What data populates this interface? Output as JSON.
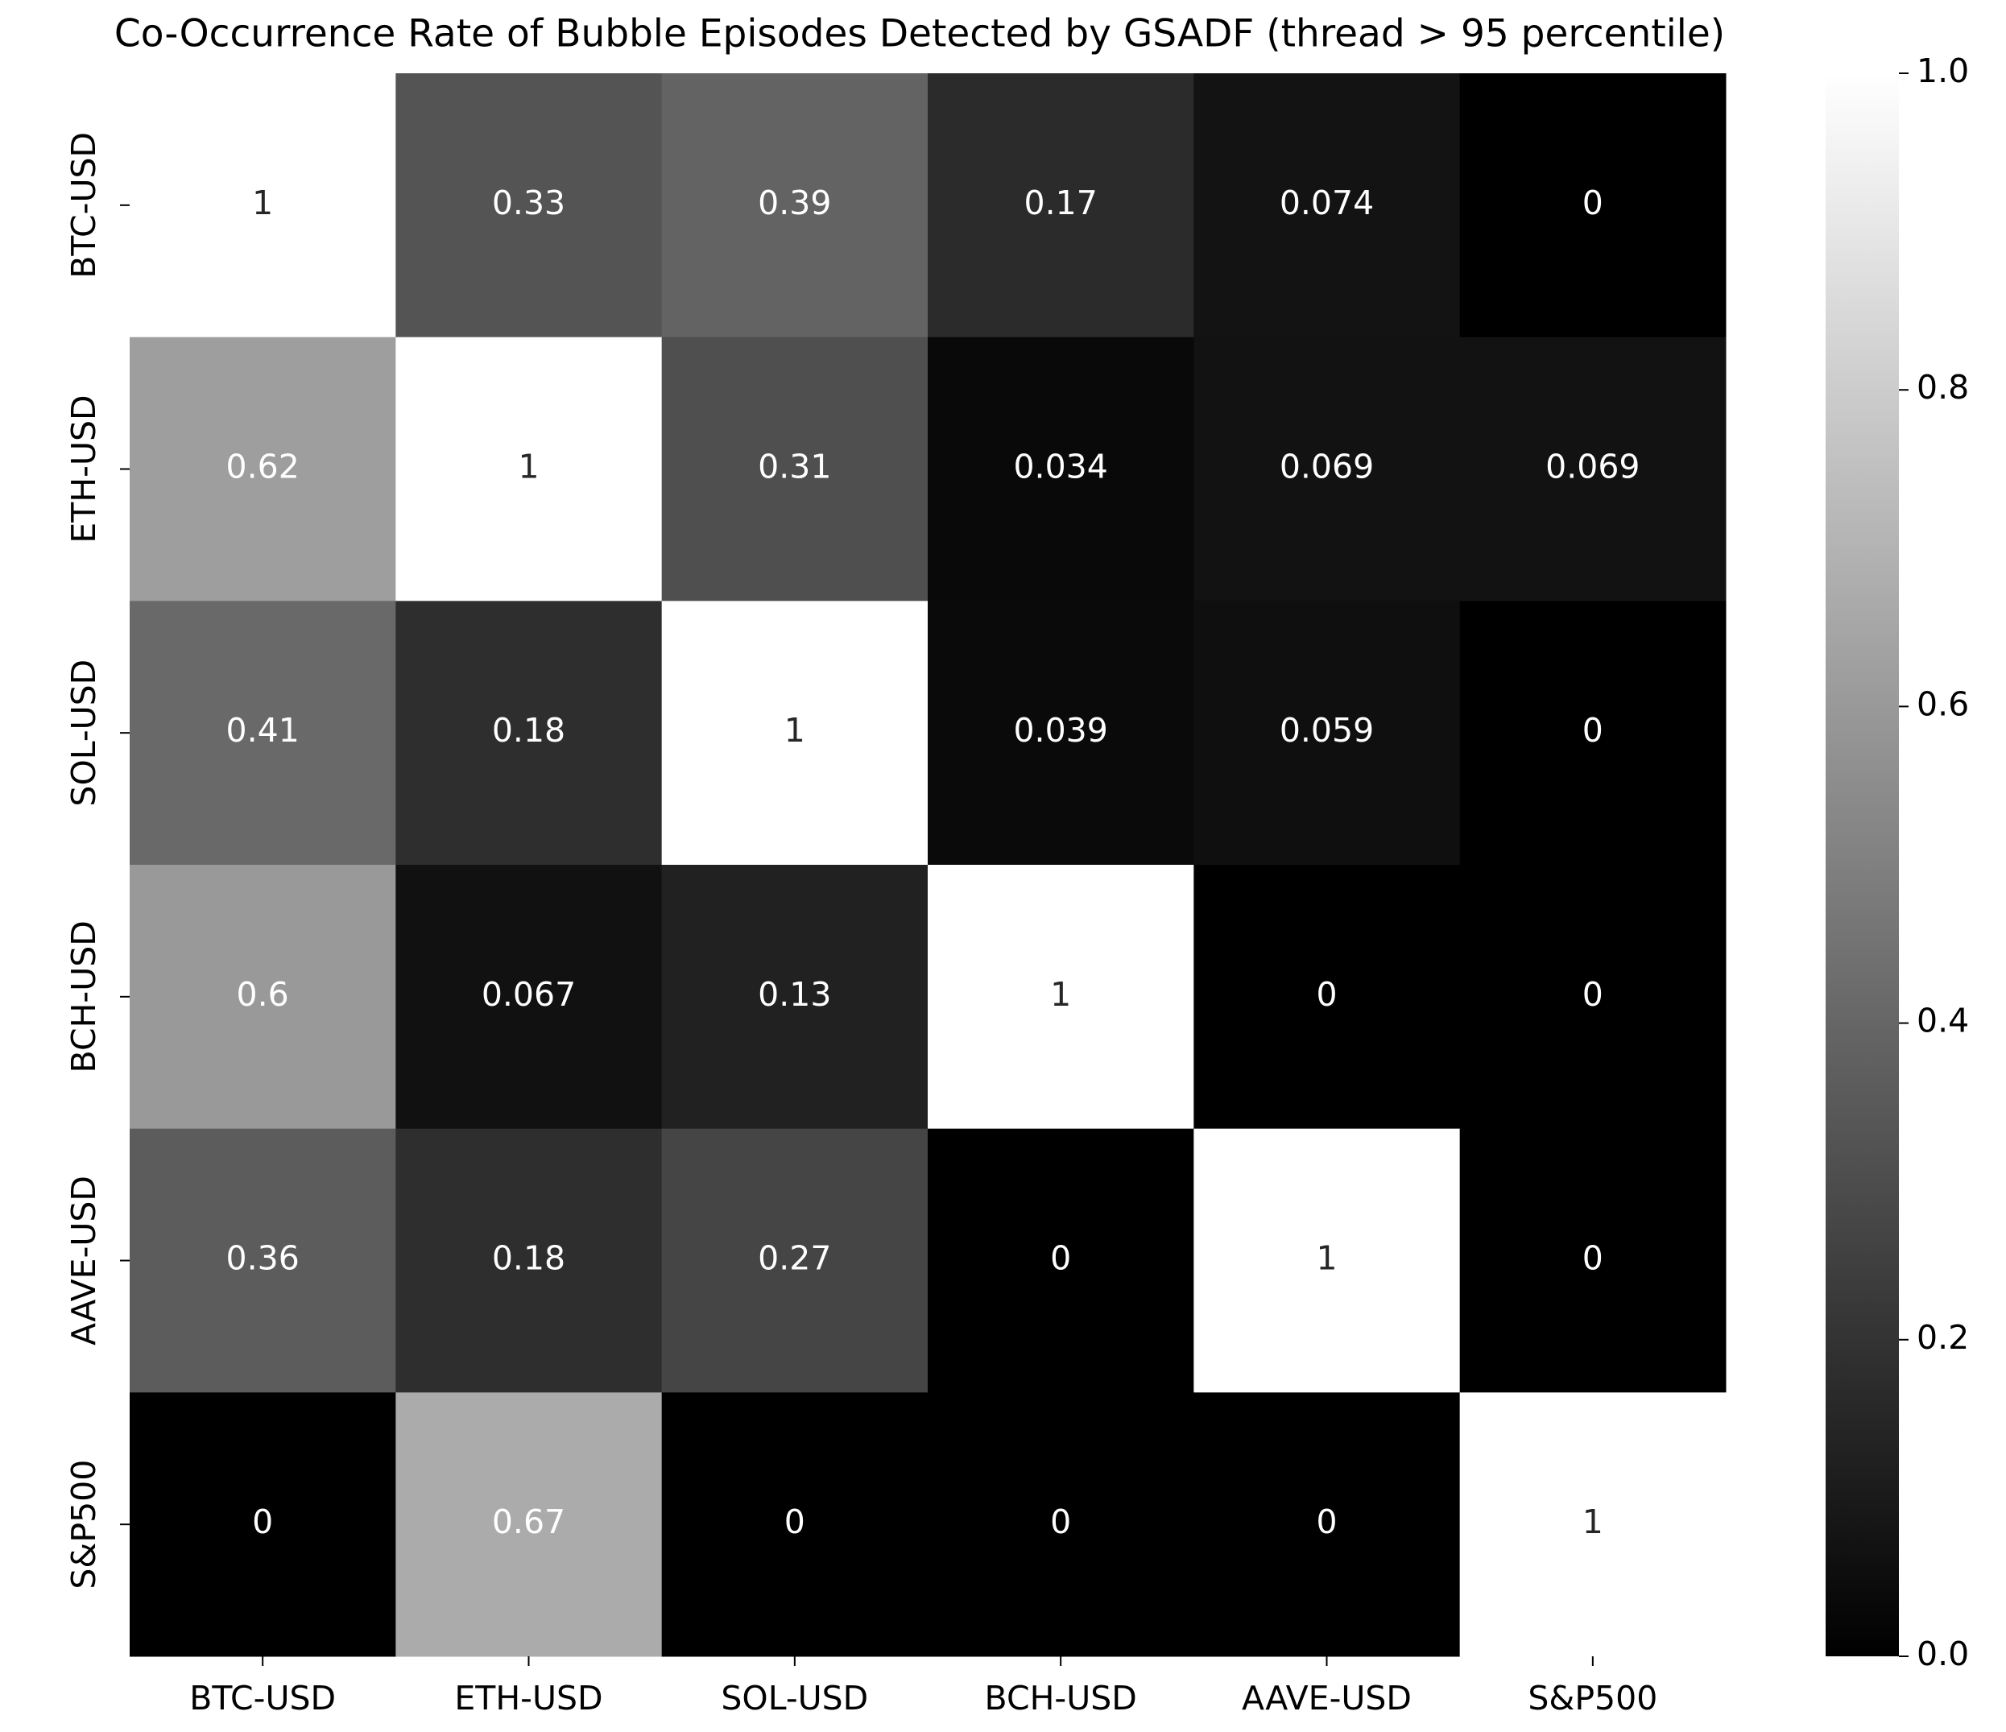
{
  "chart_data": {
    "type": "heatmap",
    "title": "Co-Occurrence Rate of Bubble Episodes Detected by GSADF (thread > 95 percentile)",
    "xcategories": [
      "BTC-USD",
      "ETH-USD",
      "SOL-USD",
      "BCH-USD",
      "AAVE-USD",
      "S&P500"
    ],
    "ycategories": [
      "BTC-USD",
      "ETH-USD",
      "SOL-USD",
      "BCH-USD",
      "AAVE-USD",
      "S&P500"
    ],
    "values": [
      [
        1,
        0.33,
        0.39,
        0.17,
        0.074,
        0
      ],
      [
        0.62,
        1,
        0.31,
        0.034,
        0.069,
        0.069
      ],
      [
        0.41,
        0.18,
        1,
        0.039,
        0.059,
        0
      ],
      [
        0.6,
        0.067,
        0.13,
        1,
        0,
        0
      ],
      [
        0.36,
        0.18,
        0.27,
        0,
        1,
        0
      ],
      [
        0,
        0.67,
        0,
        0,
        0,
        1
      ]
    ],
    "colormap": "gray",
    "zlim": [
      0,
      1
    ],
    "zticks": [
      {
        "value": 0,
        "label": "0.0"
      },
      0.2,
      0.4,
      0.6,
      0.8,
      {
        "value": 1,
        "label": "1.0"
      }
    ]
  }
}
